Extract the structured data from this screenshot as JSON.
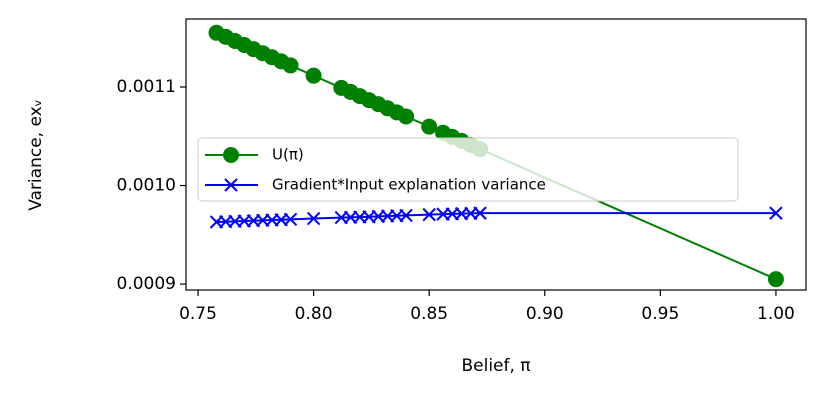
{
  "chart_data": {
    "type": "line",
    "x_label": "Belief, π",
    "y_label": "Variance, exᵥ",
    "x": [
      0.758,
      0.762,
      0.766,
      0.77,
      0.774,
      0.778,
      0.782,
      0.786,
      0.79,
      0.8,
      0.812,
      0.816,
      0.82,
      0.824,
      0.828,
      0.832,
      0.836,
      0.84,
      0.85,
      0.856,
      0.86,
      0.864,
      0.868,
      0.872,
      1.0
    ],
    "series": [
      {
        "name": "U(π)",
        "color": "#008000",
        "marker": "circle",
        "values": [
          0.001155,
          0.0011509,
          0.0011467,
          0.0011426,
          0.0011384,
          0.0011343,
          0.0011302,
          0.001126,
          0.0011219,
          0.0011115,
          0.0010991,
          0.001095,
          0.0010908,
          0.0010867,
          0.0010826,
          0.0010784,
          0.0010743,
          0.0010701,
          0.0010598,
          0.0010536,
          0.0010494,
          0.0010453,
          0.0010412,
          0.001037,
          0.000905
        ]
      },
      {
        "name": "Gradient*Input explanation variance",
        "color": "#0000ff",
        "marker": "x",
        "values": [
          0.000963,
          0.0009633,
          0.0009637,
          0.000964,
          0.0009643,
          0.0009647,
          0.000965,
          0.0009653,
          0.0009657,
          0.0009665,
          0.0009675,
          0.0009678,
          0.000968,
          0.0009683,
          0.0009687,
          0.000969,
          0.0009693,
          0.0009697,
          0.0009705,
          0.000971,
          0.0009712,
          0.0009715,
          0.0009717,
          0.000972,
          0.000972
        ]
      }
    ],
    "xlim": [
      0.7448,
      1.013
    ],
    "ylim": [
      0.000894,
      0.001169
    ],
    "xticks": [
      {
        "value": 0.75,
        "label": "0.75"
      },
      {
        "value": 0.8,
        "label": "0.80"
      },
      {
        "value": 0.85,
        "label": "0.85"
      },
      {
        "value": 0.9,
        "label": "0.90"
      },
      {
        "value": 0.95,
        "label": "0.95"
      },
      {
        "value": 1.0,
        "label": "1.00"
      }
    ],
    "yticks": [
      {
        "value": 0.0009,
        "label": "0.0009"
      },
      {
        "value": 0.001,
        "label": "0.0010"
      },
      {
        "value": 0.0011,
        "label": "0.0011"
      }
    ],
    "legend": "center-left"
  }
}
